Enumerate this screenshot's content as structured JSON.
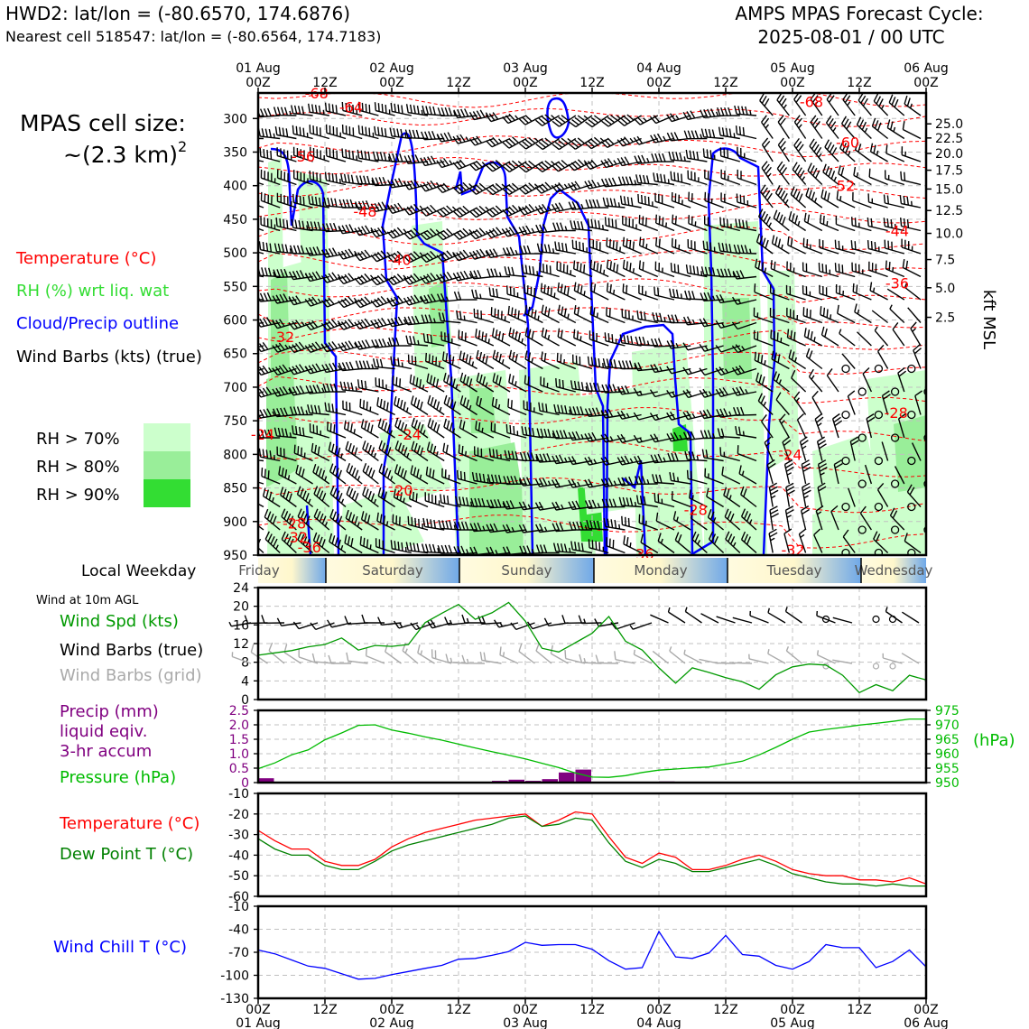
{
  "header": {
    "station_line": "HWD2: lat/lon = (-80.6570, 174.6876)",
    "nearest_cell_line": "Nearest cell 518547: lat/lon = (-80.6564, 174.7183)",
    "forecast_title": "AMPS MPAS Forecast Cycle:",
    "forecast_cycle": "2025-08-01 / 00 UTC"
  },
  "left_legend": {
    "cell_size_label": "MPAS cell size:",
    "cell_size_value": "~(2.3 km)",
    "cell_size_sup": "2",
    "temperature": "Temperature (°C)",
    "rh": "RH (%) wrt liq. wat",
    "cloud": "Cloud/Precip outline",
    "wind_barbs": "Wind Barbs (kts) (true)",
    "rh70": "RH > 70%",
    "rh80": "RH > 80%",
    "rh90": "RH > 90%",
    "local_weekday": "Local Weekday",
    "wind_10m": "Wind at 10m AGL",
    "wind_spd": "Wind Spd (kts)",
    "wind_barbs_true": "Wind Barbs (true)",
    "wind_barbs_grid": "Wind Barbs (grid)",
    "precip_1": "Precip (mm)",
    "precip_2": "liquid eqiv.",
    "precip_3": "3-hr accum",
    "pressure": "Pressure (hPa)",
    "temp2": "Temperature (°C)",
    "dewpoint": "Dew Point T (°C)",
    "windchill": "Wind Chill T (°C)"
  },
  "colors": {
    "temperature": "#ff0000",
    "rh_label": "#33dd33",
    "rh70": "#ccffcc",
    "rh80": "#99ee99",
    "rh90": "#33dd33",
    "cloud": "#0000ff",
    "wind_spd": "#009900",
    "precip": "#800080",
    "pressure": "#00bb00",
    "dewpoint": "#008000",
    "windchill": "#0000ff",
    "grid_barbs": "#aaaaaa"
  },
  "chart_data": [
    {
      "type": "heatmap",
      "name_tag": "cross-section",
      "y_axis_ticks": [
        "300",
        "350",
        "400",
        "450",
        "500",
        "550",
        "600",
        "650",
        "700",
        "750",
        "800",
        "850",
        "900",
        "950"
      ],
      "y_axis_values": [
        300,
        350,
        400,
        450,
        500,
        550,
        600,
        650,
        700,
        750,
        800,
        850,
        900,
        950
      ],
      "kft_ticks": [
        "25.0",
        "22.5",
        "20.0",
        "17.5",
        "15.0",
        "12.5",
        "10.0",
        "7.5",
        "5.0",
        "2.5"
      ],
      "kft_pressures": [
        308,
        329,
        352,
        377,
        405,
        437,
        471,
        510,
        552,
        596
      ],
      "kft_label": "kft MSL",
      "top_dates": [
        "01 Aug",
        "02 Aug",
        "03 Aug",
        "04 Aug",
        "05 Aug",
        "06 Aug"
      ],
      "top_hour_ticks": [
        "00Z",
        "12Z",
        "00Z",
        "12Z",
        "00Z",
        "12Z",
        "00Z",
        "12Z",
        "00Z",
        "12Z",
        "00Z"
      ],
      "hours_range": [
        0,
        120
      ],
      "ylim": [
        950,
        262
      ],
      "temperature_contour_labels": [
        {
          "text": "-68",
          "hour": 10.5,
          "p": 262
        },
        {
          "text": "-64",
          "hour": 16.7,
          "p": 283
        },
        {
          "text": "-56",
          "hour": 8.1,
          "p": 356
        },
        {
          "text": "-48",
          "hour": 19.2,
          "p": 438
        },
        {
          "text": "-40",
          "hour": 25.4,
          "p": 510
        },
        {
          "text": "-32",
          "hour": 4.4,
          "p": 625
        },
        {
          "text": "-24",
          "hour": 0.8,
          "p": 770
        },
        {
          "text": "-24",
          "hour": 27.2,
          "p": 770
        },
        {
          "text": "-20",
          "hour": 25.7,
          "p": 853
        },
        {
          "text": "-28",
          "hour": 6.5,
          "p": 902
        },
        {
          "text": "-32",
          "hour": 6.8,
          "p": 923
        },
        {
          "text": "-36",
          "hour": 9.2,
          "p": 938
        },
        {
          "text": "-36",
          "hour": 69.0,
          "p": 948
        },
        {
          "text": "-28",
          "hour": 78.6,
          "p": 882
        },
        {
          "text": "-24",
          "hour": 95.6,
          "p": 800
        },
        {
          "text": "-32",
          "hour": 96.1,
          "p": 942
        },
        {
          "text": "-68",
          "hour": 99.4,
          "p": 275
        },
        {
          "text": "-60",
          "hour": 105.9,
          "p": 335
        },
        {
          "text": "-52",
          "hour": 105.1,
          "p": 400
        },
        {
          "text": "-44",
          "hour": 114.8,
          "p": 467
        },
        {
          "text": "-36",
          "hour": 114.8,
          "p": 545
        },
        {
          "text": "-28",
          "hour": 114.6,
          "p": 738
        }
      ]
    },
    {
      "type": "line",
      "name_tag": "wind-speed",
      "x_hours": [
        0,
        3,
        6,
        9,
        12,
        15,
        18,
        21,
        24,
        27,
        30,
        33,
        36,
        39,
        42,
        45,
        48,
        51,
        54,
        57,
        60,
        63,
        66,
        69,
        72,
        75,
        78,
        81,
        84,
        87,
        90,
        93,
        96,
        99,
        102,
        105,
        108,
        111,
        114,
        117,
        120
      ],
      "series": [
        {
          "values": [
            9.5,
            10,
            10.5,
            11.3,
            11.8,
            13.2,
            10.6,
            11.6,
            11.4,
            11.8,
            16.5,
            18.5,
            20.4,
            17.2,
            18.6,
            20.8,
            16.8,
            11,
            10.2,
            12.2,
            14.2,
            17.8,
            12.5,
            10.6,
            6.8,
            3.5,
            6.8,
            5.8,
            4.7,
            3.8,
            2.2,
            5.3,
            7,
            7.6,
            7.4,
            5.2,
            1.5,
            3.2,
            1.9,
            5.2,
            4.2
          ]
        }
      ],
      "ylim": [
        0,
        24
      ],
      "y_ticks": [
        "0",
        "4",
        "8",
        "12",
        "16",
        "20",
        "24"
      ]
    },
    {
      "type": "bar",
      "name_tag": "precip",
      "bar_start_hours": [
        0,
        42,
        45,
        48,
        51,
        54,
        57,
        72
      ],
      "values": [
        0.15,
        0.06,
        0.1,
        0.06,
        0.12,
        0.35,
        0.45,
        0.04
      ],
      "ylim": [
        0,
        2.5
      ],
      "y_ticks": [
        "0",
        "0.5",
        "1.0",
        "1.5",
        "2.0",
        "2.5"
      ]
    },
    {
      "type": "line",
      "name_tag": "pressure",
      "x_hours": [
        0,
        3,
        6,
        9,
        12,
        15,
        18,
        21,
        24,
        27,
        30,
        33,
        36,
        39,
        42,
        45,
        48,
        51,
        54,
        57,
        60,
        63,
        66,
        69,
        72,
        75,
        78,
        81,
        84,
        87,
        90,
        93,
        96,
        99,
        102,
        105,
        108,
        111,
        114,
        117,
        120
      ],
      "series": [
        {
          "values": [
            954.8,
            956.8,
            959.6,
            961.3,
            964.8,
            967.2,
            969.8,
            970,
            968.2,
            967.1,
            965.8,
            964.7,
            963.3,
            962,
            960.7,
            959.5,
            958.2,
            956.7,
            955.2,
            953.3,
            951.9,
            951.8,
            952.4,
            953.5,
            954.3,
            954.7,
            955.1,
            955.4,
            956.4,
            957.4,
            959.6,
            962.2,
            965,
            967.5,
            968.4,
            969.1,
            969.9,
            970.5,
            971.2,
            972,
            972
          ]
        }
      ],
      "ylim": [
        950,
        975
      ],
      "y_ticks_right": [
        "950",
        "955",
        "960",
        "965",
        "970",
        "975"
      ],
      "y_unit": "(hPa)"
    },
    {
      "type": "line",
      "name_tag": "temperature",
      "x_hours": [
        0,
        3,
        6,
        9,
        12,
        15,
        18,
        21,
        24,
        27,
        30,
        33,
        36,
        39,
        42,
        45,
        48,
        51,
        54,
        57,
        60,
        63,
        66,
        69,
        72,
        75,
        78,
        81,
        84,
        87,
        90,
        93,
        96,
        99,
        102,
        105,
        108,
        111,
        114,
        117,
        120
      ],
      "series": [
        {
          "values": [
            -28,
            -33,
            -37,
            -37,
            -43,
            -45,
            -45,
            -42,
            -36,
            -32,
            -29,
            -27,
            -25,
            -23,
            -22,
            -21,
            -20,
            -26,
            -23,
            -19,
            -20,
            -31,
            -41,
            -44,
            -39,
            -41,
            -47,
            -47,
            -45,
            -42,
            -40,
            -43,
            -47,
            -49,
            -50,
            -50,
            -52,
            -52,
            -53,
            -51,
            -54
          ]
        },
        {
          "values": [
            -32,
            -37,
            -40,
            -40,
            -45,
            -47,
            -47,
            -43,
            -38,
            -35,
            -33,
            -31,
            -29,
            -27,
            -25,
            -22,
            -21,
            -26,
            -25,
            -22,
            -23,
            -34,
            -43,
            -46,
            -42,
            -44,
            -48,
            -48,
            -46,
            -44,
            -42,
            -45,
            -49,
            -51,
            -53,
            -54,
            -54,
            -55,
            -54,
            -55,
            -55
          ]
        }
      ],
      "ylim": [
        -60,
        -10
      ],
      "y_ticks": [
        "-60",
        "-50",
        "-40",
        "-30",
        "-20",
        "-10"
      ]
    },
    {
      "type": "line",
      "name_tag": "wind-chill",
      "x_hours": [
        0,
        3,
        6,
        9,
        12,
        15,
        18,
        21,
        24,
        27,
        30,
        33,
        36,
        39,
        42,
        45,
        48,
        51,
        54,
        57,
        60,
        63,
        66,
        69,
        72,
        75,
        78,
        81,
        84,
        87,
        90,
        93,
        96,
        99,
        102,
        105,
        108,
        111,
        114,
        117,
        120
      ],
      "series": [
        {
          "values": [
            -67,
            -72,
            -80,
            -88,
            -91,
            -98,
            -105,
            -104,
            -99,
            -95,
            -91,
            -87,
            -79,
            -78,
            -74,
            -69,
            -57,
            -61,
            -60,
            -60,
            -66,
            -81,
            -92,
            -90,
            -43,
            -76,
            -78,
            -71,
            -48,
            -73,
            -75,
            -87,
            -92,
            -82,
            -60,
            -64,
            -64,
            -90,
            -82,
            -67,
            -89
          ]
        }
      ],
      "ylim": [
        -130,
        -10
      ],
      "y_ticks": [
        "-130",
        "-100",
        "-70",
        "-40",
        "-10"
      ]
    }
  ],
  "weekday_strip": {
    "days": [
      "Friday",
      "Saturday",
      "Sunday",
      "Monday",
      "Tuesday",
      "Wednesday"
    ]
  },
  "bottom_axis": {
    "hour_ticks": [
      "00Z",
      "12Z",
      "00Z",
      "12Z",
      "00Z",
      "12Z",
      "00Z",
      "12Z",
      "00Z",
      "12Z",
      "00Z"
    ],
    "dates": [
      "01 Aug",
      "02 Aug",
      "03 Aug",
      "04 Aug",
      "05 Aug",
      "06 Aug"
    ]
  }
}
